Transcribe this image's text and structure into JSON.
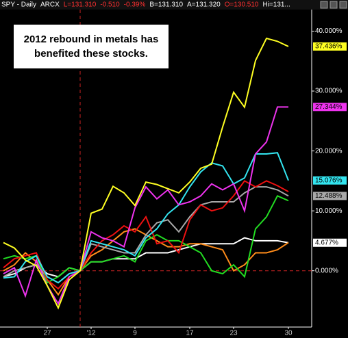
{
  "chart_data": {
    "type": "line",
    "header": [
      "SPY - Daily",
      "ARCX",
      "L=131.310",
      "-0.510",
      "-0.39%",
      "B=131.310",
      "A=131.320",
      "O=130.510",
      "Hi=131..."
    ],
    "header_colors": [
      "#ffffff",
      "#ffffff",
      "#ff3030",
      "#ff3030",
      "#ff3030",
      "#ffffff",
      "#ffffff",
      "#ff3030",
      "#ffffff"
    ],
    "annotation": [
      "2012 rebound in metals has",
      "benefited these stocks."
    ],
    "categories": [
      null,
      null,
      null,
      null,
      "27",
      null,
      null,
      null,
      "'12",
      null,
      null,
      null,
      "9",
      null,
      null,
      null,
      null,
      "17",
      null,
      null,
      null,
      "23",
      null,
      null,
      null,
      null,
      "30"
    ],
    "ylim": [
      -9.4,
      43.6
    ],
    "yticks": [
      {
        "value": 0,
        "label": "0.000%"
      },
      {
        "value": 10,
        "label": "10.000%"
      },
      {
        "value": 20,
        "label": "20.000%"
      },
      {
        "value": 30,
        "label": "30.000%"
      },
      {
        "value": 40,
        "label": "40.000%"
      }
    ],
    "series": [
      {
        "color": "#ffffff",
        "values": [
          -1,
          -0.5,
          0.5,
          1,
          -0.5,
          -1,
          0.5,
          0,
          1.5,
          1.5,
          2,
          2,
          2,
          3,
          3,
          3,
          3.5,
          4,
          4.5,
          4.5,
          4.5,
          4.5,
          5.5,
          5,
          5,
          5,
          4.677
        ],
        "value_labels": [
          null,
          null,
          null,
          null,
          null,
          null,
          null,
          null,
          null,
          null,
          null,
          null,
          null,
          null,
          null,
          null,
          null,
          null,
          null,
          null,
          null,
          null,
          null,
          null,
          null,
          null,
          "4.677%"
        ]
      },
      {
        "color": "#ff8c1a",
        "values": [
          0,
          1,
          3,
          1.5,
          -1.5,
          -4,
          -1,
          0,
          2.5,
          3.5,
          5,
          6.5,
          7,
          6,
          5,
          4,
          4,
          4.5,
          4.5,
          4,
          3.5,
          0,
          1,
          3,
          3,
          3.5,
          4.7
        ]
      },
      {
        "color": "#22dd22",
        "values": [
          2,
          2.5,
          2,
          2.5,
          -2,
          -1,
          0.5,
          0,
          1.5,
          1.5,
          2,
          2.5,
          1.5,
          5,
          6,
          5,
          5,
          4,
          3,
          0,
          -0.5,
          1,
          -1,
          7,
          9,
          12.5,
          11.7
        ]
      },
      {
        "color": "#a8a8a8",
        "values": [
          -1,
          0,
          0.5,
          1,
          -1,
          -2,
          -0.5,
          0,
          4.5,
          4,
          3.5,
          3,
          3,
          6,
          8,
          8.5,
          6.5,
          9,
          11,
          11.5,
          11.5,
          11.5,
          13,
          14,
          14,
          13.5,
          12.488
        ],
        "value_labels": [
          null,
          null,
          null,
          null,
          null,
          null,
          null,
          null,
          null,
          null,
          null,
          null,
          null,
          null,
          null,
          null,
          null,
          null,
          null,
          null,
          null,
          null,
          null,
          null,
          null,
          null,
          "12.488%"
        ]
      },
      {
        "color": "#ee1111",
        "values": [
          0.5,
          2,
          2.5,
          3,
          -1.5,
          -3,
          -1,
          0,
          3,
          5,
          6,
          7.5,
          6.5,
          9,
          4.5,
          5,
          3,
          8.5,
          11,
          10,
          10.5,
          12.5,
          15,
          14,
          15,
          14.2,
          13.2
        ]
      },
      {
        "color": "#33e5f0",
        "values": [
          -1.2,
          -1,
          1.5,
          2.5,
          -1,
          -2,
          -0.5,
          0,
          5,
          4.5,
          4,
          3.5,
          2.5,
          5.5,
          7,
          9.5,
          11,
          14,
          16.5,
          18,
          17.5,
          14.5,
          15.5,
          19.5,
          19.5,
          19.7,
          15.076
        ],
        "value_labels": [
          null,
          null,
          null,
          null,
          null,
          null,
          null,
          null,
          null,
          null,
          null,
          null,
          null,
          null,
          null,
          null,
          null,
          null,
          null,
          null,
          null,
          null,
          null,
          null,
          null,
          null,
          "15.076%"
        ]
      },
      {
        "color": "#ee33ee",
        "values": [
          -0.5,
          0.5,
          -4.2,
          1.8,
          -2.5,
          -5.5,
          -1,
          0,
          6.5,
          5.5,
          5,
          4,
          10.5,
          14,
          12,
          13.5,
          11,
          11.5,
          12.5,
          14.5,
          13.5,
          14.5,
          10,
          19.5,
          21.5,
          27.344,
          27.344
        ],
        "value_labels": [
          null,
          null,
          null,
          null,
          null,
          null,
          null,
          null,
          null,
          null,
          null,
          null,
          null,
          null,
          null,
          null,
          null,
          null,
          null,
          null,
          null,
          null,
          null,
          null,
          null,
          null,
          "27.344%"
        ]
      },
      {
        "color": "#ffff22",
        "values": [
          4.7,
          3.8,
          1.8,
          0.8,
          -2.5,
          -6.2,
          -1.5,
          0,
          9.6,
          10.3,
          14.1,
          13,
          10.9,
          14.8,
          14.4,
          13.7,
          13,
          14.8,
          17.1,
          17.8,
          24,
          29.8,
          27.3,
          35.1,
          38.8,
          38.3,
          37.436
        ],
        "value_labels": [
          null,
          null,
          null,
          null,
          null,
          null,
          null,
          null,
          null,
          null,
          null,
          null,
          null,
          null,
          null,
          null,
          null,
          null,
          null,
          null,
          null,
          null,
          null,
          null,
          null,
          null,
          "37.436%"
        ]
      }
    ]
  }
}
